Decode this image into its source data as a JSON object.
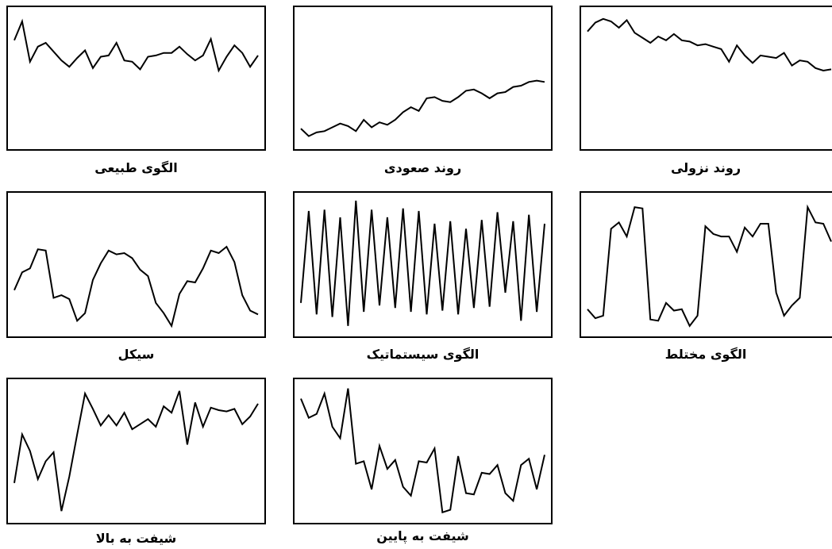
{
  "panels": [
    {
      "label": "الگوی طبیعی",
      "series": [
        80,
        95,
        63,
        75,
        78,
        71,
        64,
        59,
        66,
        72,
        58,
        67,
        68,
        78,
        64,
        63,
        57,
        67,
        68,
        70,
        70,
        75,
        69,
        64,
        68,
        81,
        56,
        67,
        76,
        70,
        59,
        68
      ]
    },
    {
      "label": "روند صعودی",
      "series": [
        10,
        4,
        7,
        8,
        11,
        14,
        12,
        8,
        17,
        11,
        15,
        13,
        17,
        23,
        27,
        24,
        34,
        35,
        32,
        31,
        35,
        40,
        41,
        38,
        34,
        38,
        39,
        43,
        44,
        47,
        48,
        47
      ]
    },
    {
      "label": "روند نزولی",
      "series": [
        87,
        94,
        97,
        95,
        90,
        96,
        86,
        82,
        78,
        83,
        80,
        85,
        80,
        79,
        76,
        77,
        75,
        73,
        63,
        76,
        68,
        62,
        68,
        67,
        66,
        70,
        60,
        64,
        63,
        58,
        56,
        57
      ]
    },
    {
      "label": "سیکل",
      "series": [
        30,
        44,
        47,
        62,
        61,
        24,
        26,
        23,
        6,
        12,
        38,
        51,
        61,
        58,
        59,
        55,
        46,
        41,
        20,
        12,
        2,
        27,
        37,
        36,
        47,
        61,
        59,
        64,
        52,
        26,
        14,
        11
      ]
    },
    {
      "label": "الگوی سیستماتیک",
      "series": [
        20,
        92,
        11,
        93,
        9,
        87,
        2,
        100,
        13,
        93,
        18,
        87,
        16,
        94,
        13,
        92,
        11,
        82,
        14,
        84,
        11,
        78,
        16,
        85,
        17,
        91,
        28,
        84,
        6,
        89,
        13,
        82
      ]
    },
    {
      "label": "الگوی مختلط",
      "series": [
        15,
        8,
        10,
        78,
        83,
        72,
        95,
        94,
        7,
        6,
        20,
        14,
        15,
        2,
        10,
        80,
        74,
        72,
        72,
        60,
        79,
        72,
        82,
        82,
        28,
        10,
        18,
        24,
        95,
        83,
        82,
        68
      ]
    },
    {
      "label": "شیفت به بالا",
      "series": [
        25,
        63,
        50,
        28,
        42,
        49,
        3,
        30,
        63,
        95,
        83,
        70,
        78,
        70,
        80,
        67,
        71,
        75,
        69,
        85,
        80,
        97,
        55,
        88,
        69,
        84,
        82,
        81,
        83,
        71,
        77,
        87
      ]
    },
    {
      "label": "شیفت به پایین",
      "series": [
        91,
        76,
        79,
        95,
        69,
        60,
        99,
        40,
        42,
        20,
        54,
        36,
        43,
        22,
        15,
        42,
        41,
        52,
        2,
        4,
        46,
        17,
        16,
        33,
        32,
        39,
        17,
        11,
        39,
        44,
        20,
        47
      ]
    }
  ]
}
